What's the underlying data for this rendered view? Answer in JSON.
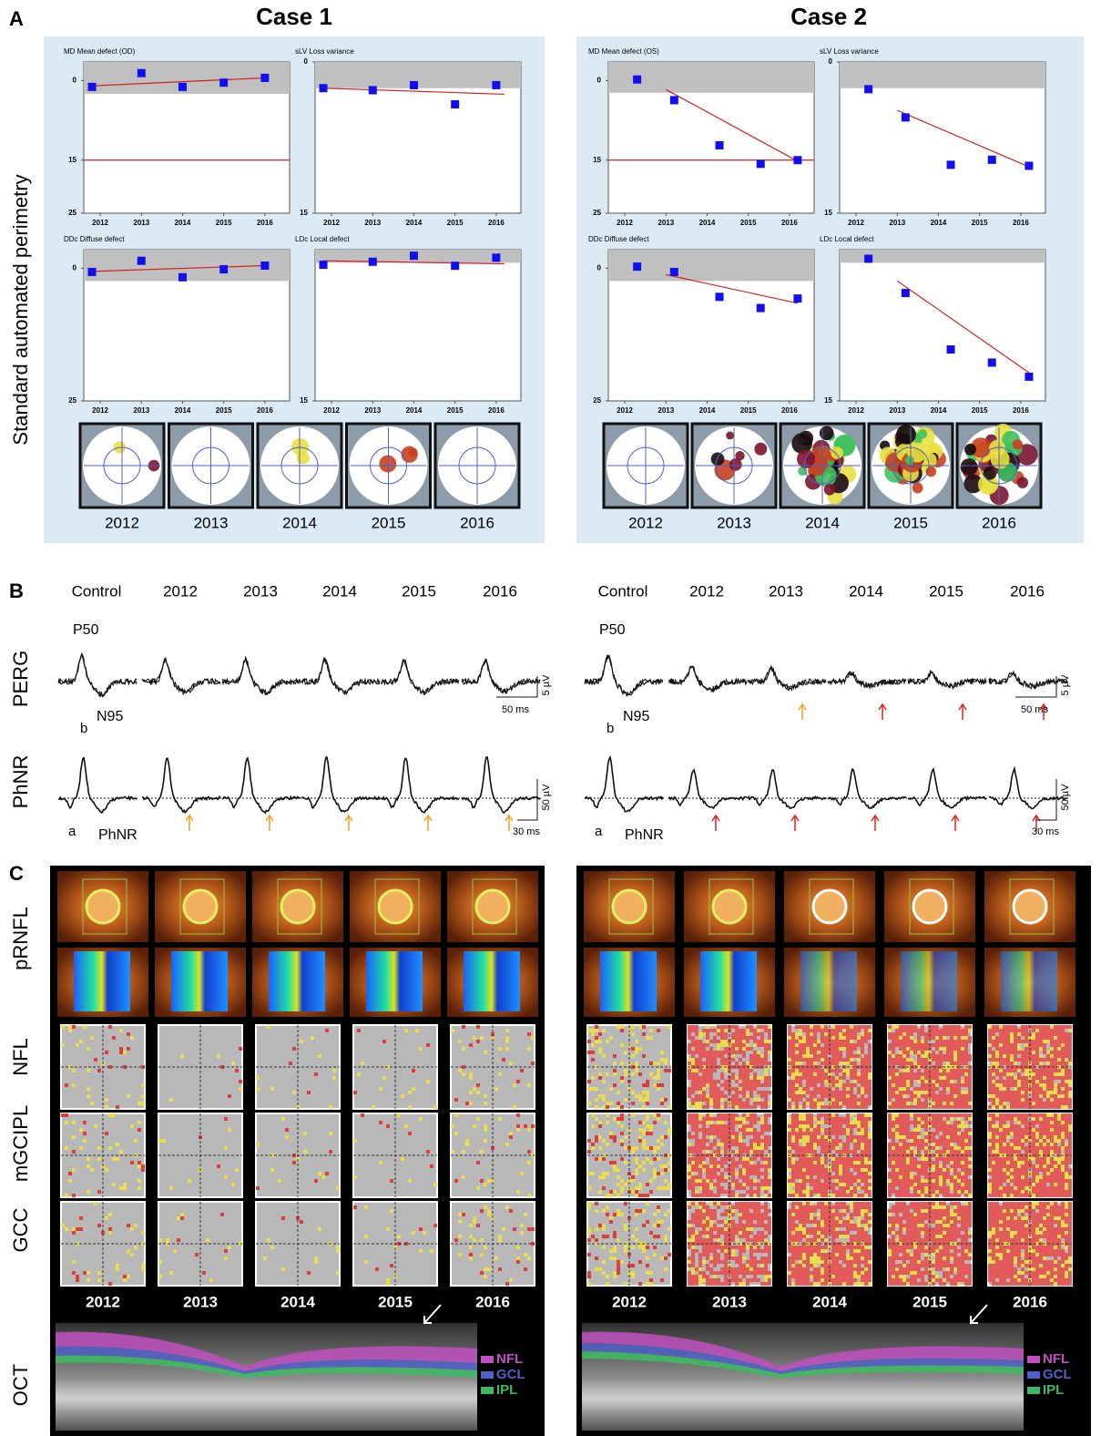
{
  "panel_labels": [
    "A",
    "B",
    "C"
  ],
  "panel_a": {
    "ylabel": "Standard automated perimetry",
    "cases": [
      {
        "title": "Case 1",
        "years": [
          "2012",
          "2013",
          "2014",
          "2015",
          "2016"
        ],
        "charts": [
          {
            "type": "scatter",
            "title": "MD Mean defect (OD)",
            "x": [
              2011.8,
              2013,
              2014,
              2015,
              2016
            ],
            "values": [
              1.2,
              -1.4,
              1.2,
              0.4,
              -0.5
            ],
            "xlim": [
              2011.6,
              2016.6
            ],
            "xticks": [
              2012,
              2013,
              2014,
              2015,
              2016
            ],
            "ylim": [
              25,
              -3.5
            ],
            "yticks": [
              0,
              15,
              25
            ],
            "color": "#1010ee",
            "normal_band": [
              -3.5,
              2.5
            ],
            "reference_line": 15,
            "trend": {
              "x": [
                2011.8,
                2016
              ],
              "values": [
                1,
                -0.5
              ],
              "color": "#d42020"
            }
          },
          {
            "type": "scatter",
            "title": "sLV Loss variance",
            "x": [
              2011.8,
              2013,
              2014,
              2015,
              2016
            ],
            "values": [
              2.6,
              2.8,
              2.3,
              4.2,
              2.3
            ],
            "xlim": [
              2011.6,
              2016.6
            ],
            "xticks": [
              2012,
              2013,
              2014,
              2015,
              2016
            ],
            "ylim": [
              15,
              0
            ],
            "yticks": [
              0,
              15
            ],
            "color": "#1010ee",
            "normal_band": [
              0,
              2.6
            ],
            "trend": {
              "x": [
                2011.8,
                2016.2
              ],
              "values": [
                2.6,
                3.2
              ],
              "color": "#d42020"
            }
          },
          {
            "type": "scatter",
            "title": "DDc Diffuse defect",
            "x": [
              2011.8,
              2013,
              2014,
              2015,
              2016
            ],
            "values": [
              0.7,
              -1.4,
              1.7,
              0.2,
              -0.5
            ],
            "xlim": [
              2011.6,
              2016.6
            ],
            "xticks": [
              2012,
              2013,
              2014,
              2015,
              2016
            ],
            "ylim": [
              25,
              -3.5
            ],
            "yticks": [
              0,
              25
            ],
            "color": "#1010ee",
            "normal_band": [
              -3.5,
              2.4
            ],
            "trend": {
              "x": [
                2011.8,
                2016
              ],
              "values": [
                0.6,
                -0.5
              ],
              "color": "#d42020"
            }
          },
          {
            "type": "scatter",
            "title": "LDc Local defect",
            "x": [
              2011.8,
              2013,
              2014,
              2015,
              2016
            ],
            "values": [
              1.5,
              1.2,
              0.6,
              1.6,
              0.8
            ],
            "xlim": [
              2011.6,
              2016.6
            ],
            "xticks": [
              2012,
              2013,
              2014,
              2015,
              2016
            ],
            "ylim": [
              15,
              0
            ],
            "yticks": [
              15
            ],
            "color": "#1010ee",
            "normal_band": [
              0,
              1.3
            ],
            "trend": {
              "x": [
                2011.8,
                2016.2
              ],
              "values": [
                1.1,
                1.4
              ],
              "color": "#d42020"
            }
          }
        ]
      },
      {
        "title": "Case 2",
        "years": [
          "2012",
          "2013",
          "2014",
          "2015",
          "2016"
        ],
        "charts": [
          {
            "type": "scatter",
            "title": "MD Mean defect (OS)",
            "x": [
              2012.3,
              2013.2,
              2014.3,
              2015.3,
              2016.2
            ],
            "values": [
              -0.2,
              3.7,
              12.2,
              15.7,
              15
            ],
            "xlim": [
              2011.6,
              2016.6
            ],
            "xticks": [
              2012,
              2013,
              2014,
              2015,
              2016
            ],
            "ylim": [
              25,
              -3.5
            ],
            "yticks": [
              0,
              15,
              25
            ],
            "color": "#1010ee",
            "normal_band": [
              -3.5,
              2.3
            ],
            "reference_line": 15,
            "trend": {
              "x": [
                2013,
                2016.2
              ],
              "values": [
                1.7,
                15.2
              ],
              "color": "#d42020"
            }
          },
          {
            "type": "scatter",
            "title": "sLV Loss variance",
            "x": [
              2012.3,
              2013.2,
              2014.3,
              2015.3,
              2016.2
            ],
            "values": [
              2.7,
              5.5,
              10.2,
              9.7,
              10.3
            ],
            "xlim": [
              2011.6,
              2016.6
            ],
            "xticks": [
              2012,
              2013,
              2014,
              2015,
              2016
            ],
            "ylim": [
              15,
              0
            ],
            "yticks": [
              0,
              15
            ],
            "color": "#1010ee",
            "normal_band": [
              0,
              2.6
            ],
            "trend": {
              "x": [
                2013,
                2016.2
              ],
              "values": [
                4.8,
                10.4
              ],
              "color": "#d42020"
            }
          },
          {
            "type": "scatter",
            "title": "DDc Diffuse defect",
            "x": [
              2012.3,
              2013.2,
              2014.3,
              2015.3,
              2016.2
            ],
            "values": [
              -0.3,
              0.7,
              5.4,
              7.5,
              5.7
            ],
            "xlim": [
              2011.6,
              2016.6
            ],
            "xticks": [
              2012,
              2013,
              2014,
              2015,
              2016
            ],
            "ylim": [
              25,
              -3.5
            ],
            "yticks": [
              0,
              25
            ],
            "color": "#1010ee",
            "normal_band": [
              -3.5,
              2.4
            ],
            "trend": {
              "x": [
                2013,
                2016.2
              ],
              "values": [
                1.2,
                6.6
              ],
              "color": "#d42020"
            }
          },
          {
            "type": "scatter",
            "title": "LDc Local defect",
            "x": [
              2012.3,
              2013.2,
              2014.3,
              2015.3,
              2016.2
            ],
            "values": [
              0.9,
              4.3,
              9.9,
              11.2,
              12.6
            ],
            "xlim": [
              2011.6,
              2016.6
            ],
            "xticks": [
              2012,
              2013,
              2014,
              2015,
              2016
            ],
            "ylim": [
              15,
              0
            ],
            "yticks": [
              15
            ],
            "color": "#1010ee",
            "normal_band": [
              0,
              1.3
            ],
            "trend": {
              "x": [
                2013,
                2016.2
              ],
              "values": [
                3.1,
                12.2
              ],
              "color": "#d42020"
            }
          }
        ]
      }
    ]
  },
  "panel_b": {
    "row_labels": [
      "PERG",
      "PhNR"
    ],
    "cases": [
      {
        "columns": [
          "Control",
          "2012",
          "2013",
          "2014",
          "2015",
          "2016"
        ],
        "perg_labels": [
          "P50",
          "N95",
          "b"
        ],
        "phnr_labels": [
          "a",
          "PhNR"
        ],
        "scale_labels": [
          "5 µV",
          "50 ms",
          "50 µV",
          "30 ms"
        ]
      },
      {
        "columns": [
          "Control",
          "2012",
          "2013",
          "2014",
          "2015",
          "2016"
        ],
        "perg_labels": [
          "P50",
          "N95",
          "b"
        ],
        "phnr_labels": [
          "a",
          "PhNR"
        ],
        "scale_labels": [
          "5 µV",
          "50 ms",
          "50 µV",
          "30 ms"
        ]
      }
    ]
  },
  "panel_c": {
    "row_labels": [
      "pRNFL",
      "NFL",
      "mGCIPL",
      "GCC",
      "OCT"
    ],
    "cases": [
      {
        "years": [
          "2012",
          "2013",
          "2014",
          "2015",
          "2016"
        ],
        "legend": [
          "NFL",
          "GCL",
          "IPL"
        ]
      },
      {
        "years": [
          "2012",
          "2013",
          "2014",
          "2015",
          "2016"
        ],
        "legend": [
          "NFL",
          "GCL",
          "IPL"
        ]
      }
    ]
  }
}
